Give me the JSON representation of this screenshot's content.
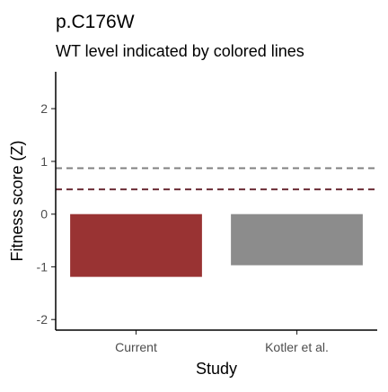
{
  "chart_data": {
    "type": "bar",
    "title": "p.C176W",
    "subtitle": "WT level indicated by colored lines",
    "xlabel": "Study",
    "ylabel": "Fitness score (Z)",
    "categories": [
      "Current",
      "Kotler et al."
    ],
    "values": [
      -1.19,
      -0.97
    ],
    "bar_colors": [
      "#993333",
      "#8c8c8c"
    ],
    "ylim": [
      -2.2,
      2.7
    ],
    "yticks": [
      -2,
      -1,
      0,
      1,
      2
    ],
    "ytick_labels": [
      "-2",
      "-1",
      "0",
      "1",
      "2"
    ],
    "grid": false,
    "reference_lines": [
      {
        "y": 0.87,
        "color": "#808080",
        "style": "dashed"
      },
      {
        "y": 0.47,
        "color": "#6b2c36",
        "style": "dashed"
      }
    ]
  }
}
